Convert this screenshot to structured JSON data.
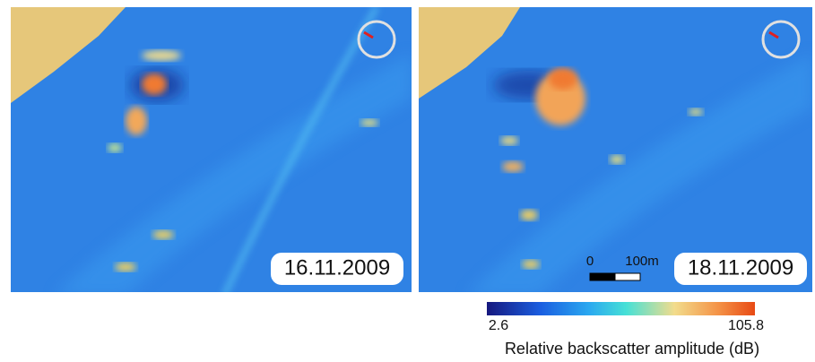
{
  "panels": [
    {
      "date": "16.11.2009"
    },
    {
      "date": "18.11.2009",
      "scale_bar": {
        "start": "0",
        "end": "100m"
      }
    }
  ],
  "colorbar": {
    "min": "2.6",
    "max": "105.8",
    "title": "Relative backscatter amplitude (dB)"
  }
}
